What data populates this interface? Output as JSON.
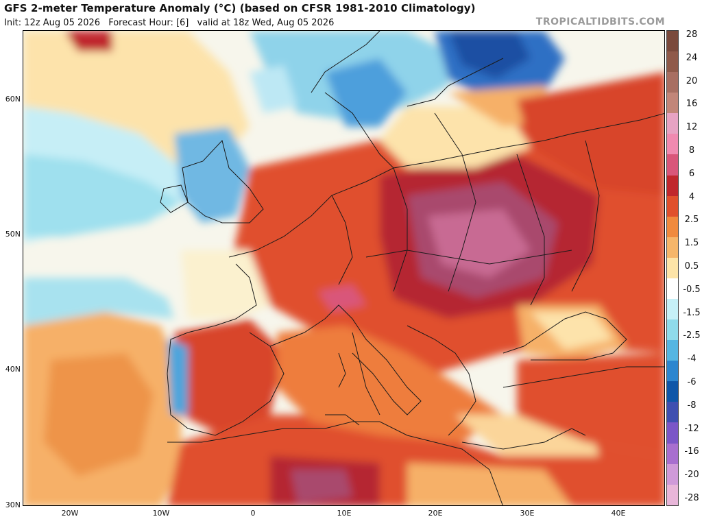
{
  "title": "GFS 2-meter Temperature Anomaly (°C) (based on CFSR 1981-2010 Climatology)",
  "subtitle": {
    "init": "Init: 12z Aug 05 2026",
    "forecast_hour": "Forecast Hour: [6]",
    "valid": "valid at 18z Wed, Aug 05 2026"
  },
  "brand": "TROPICALTIDBITS.COM",
  "axes": {
    "lat_labels": [
      "60N",
      "50N",
      "40N",
      "30N"
    ],
    "lon_labels": [
      "20W",
      "10W",
      "0",
      "10E",
      "20E",
      "30E",
      "40E"
    ]
  },
  "colorbar": {
    "labels": [
      "28",
      "24",
      "20",
      "16",
      "12",
      "8",
      "6",
      "4",
      "2.5",
      "1.5",
      "0.5",
      "-0.5",
      "-1.5",
      "-2.5",
      "-4",
      "-6",
      "-8",
      "-12",
      "-16",
      "-20",
      "-28"
    ],
    "colors": [
      "#7a4a3c",
      "#8f5a4a",
      "#a86f62",
      "#c28679",
      "#e7a3c3",
      "#f08ab0",
      "#d9567a",
      "#c0272d",
      "#e0502d",
      "#f08a3e",
      "#f6b66a",
      "#fde4a8",
      "#ffffff",
      "#c6f0f7",
      "#8fdbea",
      "#55b6e2",
      "#2d86cf",
      "#0f56a8",
      "#3f4fb0",
      "#7b56c7",
      "#a86fcf",
      "#cf9ad9",
      "#e8b6d9"
    ]
  },
  "map_colors": {
    "ocean_neutral": "#fbfbf4",
    "cool_light": "#bdeef6",
    "cool_mid": "#7fd4ea",
    "cool_deep": "#3d8fd6",
    "cool_deepest": "#1f4fa3",
    "warm_light": "#fde3ab",
    "warm_mid": "#f6b068",
    "warm": "#ee7d3c",
    "hot": "#d8452a",
    "very_hot": "#b52630",
    "extreme": "#a94a6d",
    "extreme_pink": "#c86b93",
    "border": "#1a1a1a"
  }
}
